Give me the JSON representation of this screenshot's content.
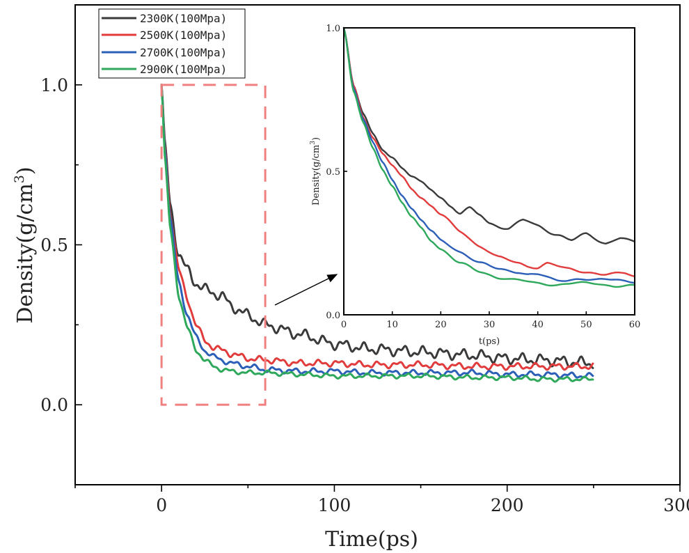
{
  "chart_data": [
    {
      "type": "line",
      "id": "main",
      "xlabel": "Time(ps)",
      "ylabel": "Density(g/cm3)",
      "ylabel_base": "Density(g/cm",
      "ylabel_sup": "3",
      "ylabel_close": ")",
      "xlim": [
        -50,
        300
      ],
      "ylim": [
        -0.25,
        1.25
      ],
      "xticks": [
        0,
        100,
        200,
        300
      ],
      "yticks": [
        0.0,
        0.5,
        1.0
      ],
      "xtick_labels": [
        "0",
        "100",
        "200",
        "300"
      ],
      "ytick_labels": [
        "0.0",
        "0.5",
        "1.0"
      ],
      "legend": {
        "position": "top-left",
        "entries": [
          "2300K(100Mpa)",
          "2500K(100Mpa)",
          "2700K(100Mpa)",
          "2900K(100Mpa)"
        ]
      },
      "zoom_box": {
        "x_range": [
          0,
          60
        ],
        "y_range": [
          0.0,
          1.0
        ],
        "color": "#f08080"
      },
      "series": [
        {
          "name": "2300K(100Mpa)",
          "color": "#3a3a3a",
          "x": [
            0,
            2,
            5,
            10,
            15,
            20,
            25,
            30,
            35,
            40,
            50,
            60,
            80,
            100,
            120,
            150,
            180,
            200,
            220,
            250
          ],
          "y": [
            1.0,
            0.82,
            0.62,
            0.47,
            0.42,
            0.38,
            0.36,
            0.35,
            0.34,
            0.31,
            0.28,
            0.25,
            0.22,
            0.19,
            0.175,
            0.165,
            0.155,
            0.145,
            0.14,
            0.13
          ],
          "wiggle": 0.012
        },
        {
          "name": "2500K(100Mpa)",
          "color": "#e23b3b",
          "x": [
            0,
            2,
            5,
            10,
            15,
            20,
            25,
            30,
            35,
            40,
            50,
            60,
            80,
            100,
            120,
            150,
            180,
            200,
            220,
            250
          ],
          "y": [
            1.0,
            0.8,
            0.6,
            0.42,
            0.33,
            0.25,
            0.2,
            0.18,
            0.17,
            0.16,
            0.145,
            0.14,
            0.13,
            0.13,
            0.125,
            0.125,
            0.12,
            0.12,
            0.12,
            0.12
          ],
          "wiggle": 0.007
        },
        {
          "name": "2700K(100Mpa)",
          "color": "#2b5fb8",
          "x": [
            0,
            2,
            5,
            10,
            15,
            20,
            25,
            30,
            35,
            40,
            50,
            60,
            80,
            100,
            120,
            150,
            180,
            200,
            220,
            250
          ],
          "y": [
            1.0,
            0.79,
            0.58,
            0.38,
            0.28,
            0.21,
            0.17,
            0.15,
            0.14,
            0.13,
            0.12,
            0.11,
            0.105,
            0.105,
            0.1,
            0.1,
            0.1,
            0.095,
            0.095,
            0.09
          ],
          "wiggle": 0.006
        },
        {
          "name": "2900K(100Mpa)",
          "color": "#2ea85b",
          "x": [
            0,
            2,
            5,
            10,
            15,
            20,
            25,
            30,
            35,
            40,
            50,
            60,
            80,
            100,
            120,
            150,
            180,
            200,
            220,
            250
          ],
          "y": [
            1.0,
            0.77,
            0.55,
            0.34,
            0.24,
            0.17,
            0.14,
            0.12,
            0.11,
            0.105,
            0.1,
            0.1,
            0.095,
            0.09,
            0.09,
            0.09,
            0.085,
            0.085,
            0.08,
            0.08
          ],
          "wiggle": 0.005
        }
      ]
    },
    {
      "type": "line",
      "id": "inset",
      "xlabel": "t(ps)",
      "ylabel": "Density(g/cm3)",
      "ylabel_base": "Density(g/cm",
      "ylabel_sup": "3",
      "ylabel_close": ")",
      "xlim": [
        0,
        60
      ],
      "ylim": [
        0.0,
        1.0
      ],
      "xticks": [
        0,
        10,
        20,
        30,
        40,
        50,
        60
      ],
      "yticks": [
        0.0,
        0.5,
        1.0
      ],
      "xtick_labels": [
        "0",
        "10",
        "20",
        "30",
        "40",
        "50",
        "60"
      ],
      "ytick_labels": [
        "0.0",
        "0.5",
        "1.0"
      ],
      "series": [
        {
          "name": "2300K(100Mpa)",
          "color": "#3a3a3a",
          "x": [
            0,
            2,
            4,
            6,
            8,
            10,
            12,
            14,
            16,
            18,
            20,
            22,
            24,
            26,
            28,
            30,
            34,
            37,
            40,
            44,
            47,
            50,
            54,
            57,
            60
          ],
          "y": [
            1.0,
            0.8,
            0.7,
            0.63,
            0.58,
            0.55,
            0.51,
            0.48,
            0.46,
            0.44,
            0.41,
            0.38,
            0.35,
            0.37,
            0.35,
            0.32,
            0.3,
            0.33,
            0.31,
            0.28,
            0.26,
            0.28,
            0.25,
            0.27,
            0.25
          ],
          "wiggle": 0.004
        },
        {
          "name": "2500K(100Mpa)",
          "color": "#e23b3b",
          "x": [
            0,
            2,
            4,
            6,
            8,
            10,
            12,
            14,
            16,
            18,
            20,
            24,
            28,
            32,
            36,
            38,
            40,
            42,
            46,
            50,
            54,
            58,
            60
          ],
          "y": [
            1.0,
            0.8,
            0.69,
            0.62,
            0.56,
            0.52,
            0.48,
            0.44,
            0.41,
            0.38,
            0.35,
            0.29,
            0.24,
            0.2,
            0.18,
            0.17,
            0.165,
            0.18,
            0.16,
            0.15,
            0.14,
            0.145,
            0.135
          ],
          "wiggle": 0.003
        },
        {
          "name": "2700K(100Mpa)",
          "color": "#2b5fb8",
          "x": [
            0,
            2,
            4,
            6,
            8,
            10,
            12,
            14,
            16,
            18,
            20,
            24,
            28,
            32,
            36,
            38,
            40,
            44,
            48,
            52,
            56,
            60
          ],
          "y": [
            1.0,
            0.79,
            0.68,
            0.6,
            0.53,
            0.47,
            0.42,
            0.37,
            0.33,
            0.29,
            0.26,
            0.22,
            0.18,
            0.16,
            0.15,
            0.14,
            0.14,
            0.12,
            0.125,
            0.12,
            0.125,
            0.115
          ],
          "wiggle": 0.003
        },
        {
          "name": "2900K(100Mpa)",
          "color": "#2ea85b",
          "x": [
            0,
            2,
            4,
            6,
            8,
            10,
            12,
            14,
            16,
            18,
            20,
            24,
            28,
            32,
            36,
            40,
            44,
            48,
            52,
            56,
            60
          ],
          "y": [
            1.0,
            0.78,
            0.67,
            0.58,
            0.51,
            0.45,
            0.39,
            0.34,
            0.3,
            0.26,
            0.23,
            0.18,
            0.15,
            0.13,
            0.12,
            0.11,
            0.105,
            0.11,
            0.11,
            0.1,
            0.1
          ],
          "wiggle": 0.003
        }
      ]
    }
  ]
}
